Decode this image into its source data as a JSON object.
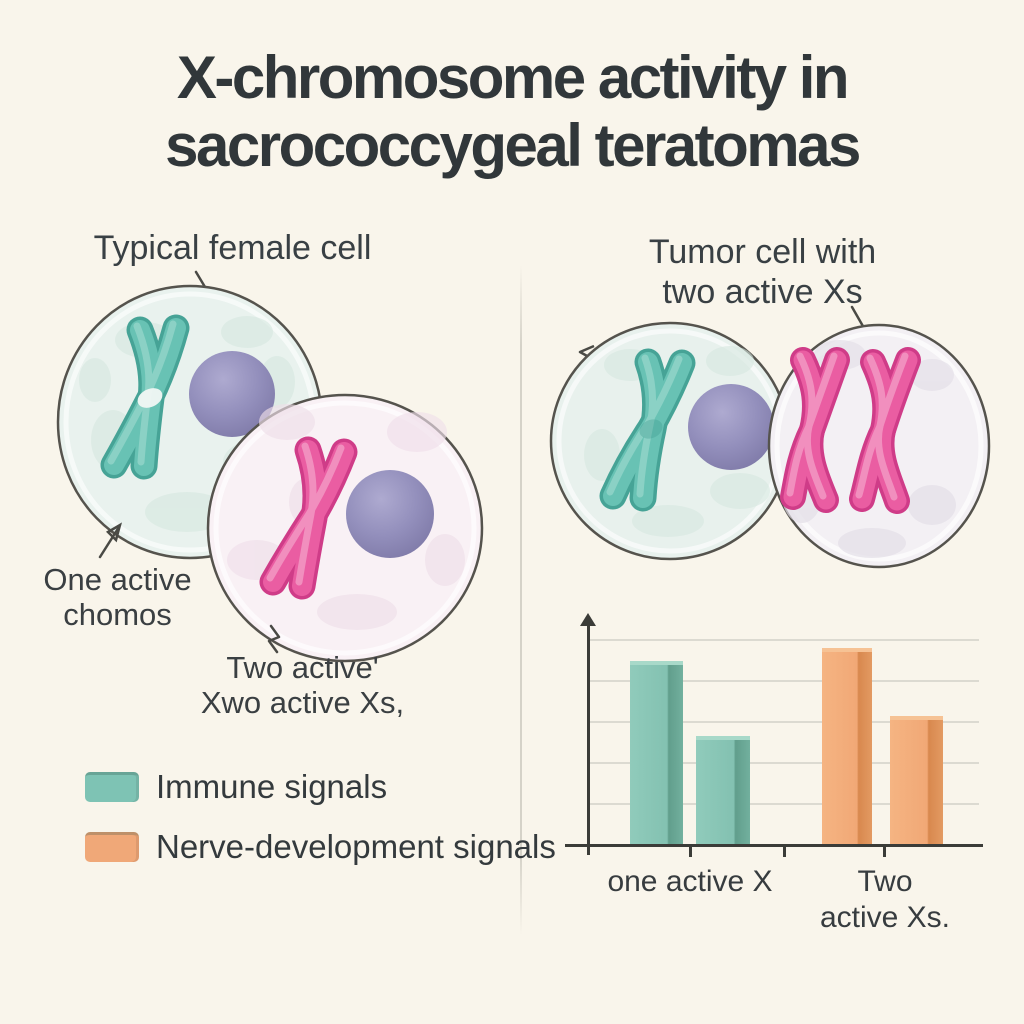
{
  "title": {
    "line1": "X-chromosome activity in",
    "line2": "sacrococcygeal teratomas"
  },
  "left_panel": {
    "header": "Typical female cell",
    "cell1_label_line1": "One active",
    "cell1_label_line2": "chomos",
    "cell2_label_line1": "Two active'",
    "cell2_label_line2": "Xwo active Xs,"
  },
  "right_panel": {
    "header_line1": "Tumor cell with",
    "header_line2": "two active Xs"
  },
  "legend": {
    "items": [
      {
        "label": "Immune signals",
        "color": "#7ec3b4"
      },
      {
        "label": "Nerve-development signals",
        "color": "#f0a878"
      }
    ]
  },
  "chart_data": {
    "type": "bar",
    "categories": [
      "one active X",
      "Two active Xs."
    ],
    "series": [
      {
        "name": "Immune signals",
        "color": "#83c1b1",
        "values": [
          81,
          47
        ]
      },
      {
        "name": "Nerve-development signals",
        "color": "#f1a876",
        "values": [
          87,
          56
        ]
      }
    ],
    "title": "",
    "xlabel": "",
    "ylabel": "",
    "ylim": [
      0,
      100
    ],
    "grid": true,
    "gridlines": 5,
    "legend_position": "outside-left",
    "category_display": {
      "cat1": "one active X",
      "cat2_line1": "Two",
      "cat2_line2": "active Xs."
    }
  },
  "colors": {
    "background": "#f9f5eb",
    "title_text": "#31373a",
    "body_text": "#3a3f42",
    "teal_chromosome": "#68c2b4",
    "pink_chromosome": "#ea5da2",
    "nucleus": "#938fbc",
    "axis": "#3b3c38"
  }
}
